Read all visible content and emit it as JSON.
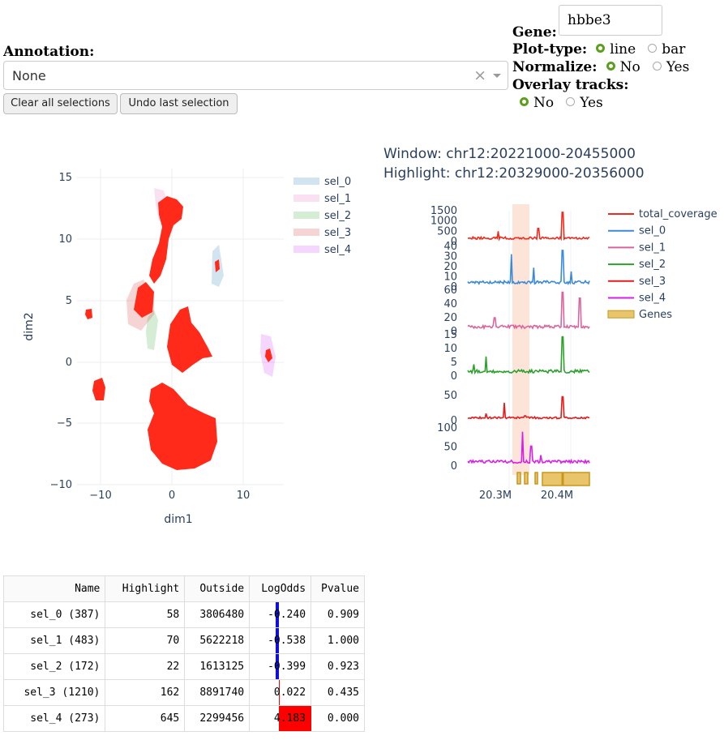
{
  "controls": {
    "annotation_label": "Annotation:",
    "annotation_value": "None",
    "clear_icon": "×",
    "clear_button": "Clear all selections",
    "undo_button": "Undo last selection",
    "gene_label": "Gene:",
    "gene_value": "hbbe3",
    "plot_type_label": "Plot-type:",
    "plot_type_options": [
      "line",
      "bar"
    ],
    "plot_type_selected": "line",
    "normalize_label": "Normalize:",
    "normalize_options": [
      "No",
      "Yes"
    ],
    "normalize_selected": "No",
    "overlay_label": "Overlay tracks:",
    "overlay_options": [
      "No",
      "Yes"
    ],
    "overlay_selected": "No"
  },
  "tracks_title": {
    "window": "Window: chr12:20221000-20455000",
    "highlight": "Highlight: chr12:20329000-20356000"
  },
  "colors": {
    "sel_0": "#1f77b4",
    "sel_1": "#e377c2",
    "sel_2": "#2ca02c",
    "sel_3": "#d62728",
    "sel_4": "#cc33ff",
    "points": "#ff2a1a",
    "genes": "#e8c46a",
    "accent_radio": "#5d9e1e"
  },
  "chart_data": [
    {
      "type": "scatter",
      "xlabel": "dim1",
      "ylabel": "dim2",
      "xlim": [
        -13.5,
        15.5
      ],
      "ylim": [
        -10.5,
        15.8
      ],
      "x_ticks": [
        "−10",
        "0",
        "10"
      ],
      "y_ticks": [
        "−10",
        "−5",
        "0",
        "5",
        "10",
        "15"
      ],
      "legend": [
        "sel_0",
        "sel_1",
        "sel_2",
        "sel_3",
        "sel_4"
      ],
      "legend_position": "right"
    },
    {
      "type": "line",
      "tracks": [
        {
          "name": "total_coverage",
          "yticks": [
            "1500",
            "1000",
            "500",
            "0"
          ]
        },
        {
          "name": "sel_0",
          "yticks": [
            "40",
            "30",
            "20",
            "10",
            "0"
          ]
        },
        {
          "name": "sel_1",
          "yticks": [
            "60",
            "40",
            "20",
            "0"
          ]
        },
        {
          "name": "sel_2",
          "yticks": [
            "15",
            "10",
            "5",
            "0"
          ]
        },
        {
          "name": "sel_3",
          "yticks": [
            "50",
            "0"
          ]
        },
        {
          "name": "sel_4",
          "yticks": [
            "100",
            "50",
            "0"
          ]
        }
      ],
      "genes_label": "Genes",
      "x_ticks": [
        "20.3M",
        "20.4M"
      ],
      "highlight_range": [
        20329000,
        20356000
      ],
      "window_range": [
        20221000,
        20455000
      ],
      "legend": [
        "total_coverage",
        "sel_0",
        "sel_1",
        "sel_2",
        "sel_3",
        "sel_4",
        "Genes"
      ],
      "legend_position": "right"
    }
  ],
  "table": {
    "headers": [
      "Name",
      "Highlight",
      "Outside",
      "LogOdds",
      "Pvalue"
    ],
    "rows": [
      {
        "name": "sel_0 (387)",
        "highlight": "58",
        "outside": "3806480",
        "logodds": "-0.240",
        "logodds_value": -0.24,
        "pvalue": "0.909"
      },
      {
        "name": "sel_1 (483)",
        "highlight": "70",
        "outside": "5622218",
        "logodds": "-0.538",
        "logodds_value": -0.538,
        "pvalue": "1.000"
      },
      {
        "name": "sel_2 (172)",
        "highlight": "22",
        "outside": "1613125",
        "logodds": "-0.399",
        "logodds_value": -0.399,
        "pvalue": "0.923"
      },
      {
        "name": "sel_3 (1210)",
        "highlight": "162",
        "outside": "8891740",
        "logodds": "0.022",
        "logodds_value": 0.022,
        "pvalue": "0.435"
      },
      {
        "name": "sel_4 (273)",
        "highlight": "645",
        "outside": "2299456",
        "logodds": "4.183",
        "logodds_value": 4.183,
        "pvalue": "0.000"
      }
    ]
  }
}
